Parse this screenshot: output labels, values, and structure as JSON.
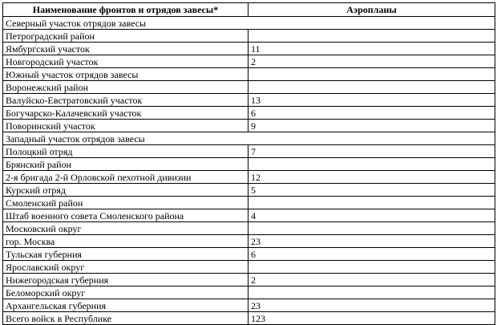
{
  "headers": [
    "Наименование фронтов и отрядов завесы*",
    "Аэропланы"
  ],
  "rows": [
    {
      "name": "Северный участок отрядов завесы",
      "value": "",
      "merged": true
    },
    {
      "name": "Петроградский район",
      "value": ""
    },
    {
      "name": "Ямбургский участок",
      "value": "11"
    },
    {
      "name": "Новгородский участок",
      "value": "2"
    },
    {
      "name": "Южный участок отрядов завесы",
      "value": ""
    },
    {
      "name": "Воронежский район",
      "value": ""
    },
    {
      "name": "Валуйско-Евстратовский участок",
      "value": "13"
    },
    {
      "name": "Богучарско-Калачевский участок",
      "value": "6"
    },
    {
      "name": "Поворинский участок",
      "value": "9"
    },
    {
      "name": "Западный участок отрядов завесы",
      "value": "",
      "merged": true
    },
    {
      "name": "Полоцкий отряд",
      "value": "7"
    },
    {
      "name": "Брянский район",
      "value": ""
    },
    {
      "name": "2-я бригада 2-й Орловской пехотной дивизии",
      "value": "12"
    },
    {
      "name": "Курский отряд",
      "value": "5"
    },
    {
      "name": "Смоленский район",
      "value": ""
    },
    {
      "name": "Штаб военного совета Смоленского района",
      "value": "4"
    },
    {
      "name": "Московский округ",
      "value": ""
    },
    {
      "name": "гор. Москва",
      "value": "23"
    },
    {
      "name": "Тульская губерния",
      "value": "6"
    },
    {
      "name": "Ярославский округ",
      "value": ""
    },
    {
      "name": "Нижегородская губерния",
      "value": "2"
    },
    {
      "name": "Беломорский округ",
      "value": ""
    },
    {
      "name": "Архангельская губерния",
      "value": "23"
    },
    {
      "name": "Всего войск в Республике",
      "value": "123"
    }
  ]
}
